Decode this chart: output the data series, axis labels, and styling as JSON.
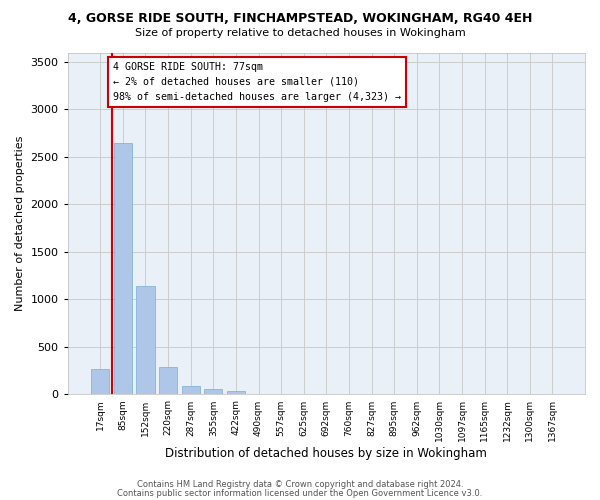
{
  "title": "4, GORSE RIDE SOUTH, FINCHAMPSTEAD, WOKINGHAM, RG40 4EH",
  "subtitle": "Size of property relative to detached houses in Wokingham",
  "xlabel": "Distribution of detached houses by size in Wokingham",
  "ylabel": "Number of detached properties",
  "bar_color": "#aec6e8",
  "bar_edge_color": "#7aaed0",
  "annotation_line_color": "#cc0000",
  "annotation_box_color": "#cc0000",
  "annotation_line1": "4 GORSE RIDE SOUTH: 77sqm",
  "annotation_line2": "← 2% of detached houses are smaller (110)",
  "annotation_line3": "98% of semi-detached houses are larger (4,323) →",
  "categories": [
    "17sqm",
    "85sqm",
    "152sqm",
    "220sqm",
    "287sqm",
    "355sqm",
    "422sqm",
    "490sqm",
    "557sqm",
    "625sqm",
    "692sqm",
    "760sqm",
    "827sqm",
    "895sqm",
    "962sqm",
    "1030sqm",
    "1097sqm",
    "1165sqm",
    "1232sqm",
    "1300sqm",
    "1367sqm"
  ],
  "values": [
    270,
    2650,
    1140,
    285,
    90,
    55,
    35,
    0,
    0,
    0,
    0,
    0,
    0,
    0,
    0,
    0,
    0,
    0,
    0,
    0,
    0
  ],
  "ylim": [
    0,
    3600
  ],
  "yticks": [
    0,
    500,
    1000,
    1500,
    2000,
    2500,
    3000,
    3500
  ],
  "grid_color": "#cccccc",
  "bg_color": "#eaf0f8",
  "footer_line1": "Contains HM Land Registry data © Crown copyright and database right 2024.",
  "footer_line2": "Contains public sector information licensed under the Open Government Licence v3.0."
}
